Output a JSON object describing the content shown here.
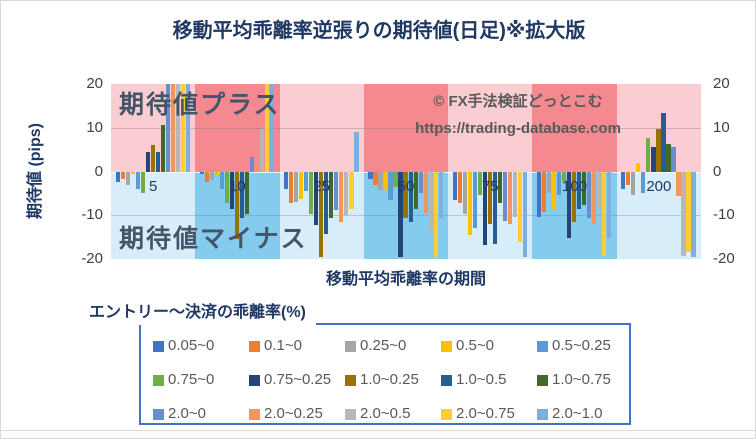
{
  "title": "移動平均乖離率逆張りの期待値(日足)※拡大版",
  "watermark": {
    "line1": "© FX手法検証どっとこむ",
    "line2": "https://trading-database.com"
  },
  "overlays": {
    "positive": "期待値プラス",
    "negative": "期待値マイナス"
  },
  "chart_data": {
    "type": "bar",
    "title": "移動平均乖離率逆張りの期待値(日足)※拡大版",
    "xlabel": "移動平均乖離率の期間",
    "ylabel": "期待値 (pips)",
    "ylim": [
      -20,
      20
    ],
    "yticks": [
      20,
      10,
      0,
      -10,
      -20
    ],
    "grid": "horizontal at ±10",
    "legend_title": "エントリー～決済の乖離率(%)",
    "legend_position": "bottom",
    "categories": [
      "5",
      "10",
      "25",
      "50",
      "75",
      "100",
      "200"
    ],
    "plot_bands": {
      "positive_light": "#F9CDD1",
      "positive_dark": "#F4898F",
      "negative_light": "#D7EDF9",
      "negative_dark": "#85CBEE",
      "pattern": [
        "light",
        "dark",
        "light",
        "dark",
        "light",
        "dark",
        "light"
      ]
    },
    "note": "values clipped at axis limits ±20",
    "series": [
      {
        "name": "0.05~0",
        "color": "#4472C4",
        "values": [
          -2.4,
          -0.5,
          -3.9,
          -1.6,
          -6.5,
          -10.3,
          -3.9
        ]
      },
      {
        "name": "0.1~0",
        "color": "#ED7D31",
        "values": [
          -1.8,
          -2.5,
          -7.3,
          -3.1,
          -7.3,
          -9.2,
          -3.1
        ]
      },
      {
        "name": "0.25~0",
        "color": "#A5A5A5",
        "values": [
          -3.1,
          -1.9,
          -7.0,
          -4.3,
          -9.6,
          -5.0,
          -5.4
        ]
      },
      {
        "name": "0.5~0",
        "color": "#FFC000",
        "values": [
          -0.5,
          -0.8,
          -6.2,
          -3.9,
          -14.6,
          -8.5,
          1.9
        ]
      },
      {
        "name": "0.5~0.25",
        "color": "#5B9BD5",
        "values": [
          -3.9,
          -3.9,
          -4.5,
          -6.5,
          -13.0,
          -5.4,
          -5.0
        ]
      },
      {
        "name": "0.75~0",
        "color": "#70AD47",
        "values": [
          -5.0,
          -7.3,
          -9.6,
          -3.5,
          -5.4,
          -2.3,
          7.7
        ]
      },
      {
        "name": "0.75~0.25",
        "color": "#264478",
        "values": [
          4.5,
          -8.5,
          -12.2,
          -19.5,
          -16.9,
          -15.3,
          5.5
        ]
      },
      {
        "name": "1.0~0.25",
        "color": "#997300",
        "values": [
          6.0,
          -15.5,
          -19.5,
          -10.7,
          -11.9,
          -11.5,
          9.8
        ]
      },
      {
        "name": "1.0~0.5",
        "color": "#255E91",
        "values": [
          4.5,
          -10.7,
          -14.2,
          -11.5,
          -16.5,
          -8.5,
          13.3
        ]
      },
      {
        "name": "1.0~0.75",
        "color": "#43682B",
        "values": [
          10.7,
          -9.6,
          -10.7,
          -8.5,
          -7.3,
          -7.7,
          6.4
        ]
      },
      {
        "name": "2.0~0",
        "color": "#698ED0",
        "values": [
          20.0,
          3.4,
          -8.9,
          -5.0,
          -11.4,
          -10.7,
          5.5
        ]
      },
      {
        "name": "2.0~0.25",
        "color": "#F1975A",
        "values": [
          20.0,
          1.1,
          -11.5,
          -9.5,
          -12.0,
          -11.9,
          -5.7
        ]
      },
      {
        "name": "2.0~0.5",
        "color": "#B7B7B7",
        "values": [
          20.0,
          9.7,
          -10.0,
          -13.7,
          -10.5,
          -8.5,
          -19.3
        ]
      },
      {
        "name": "2.0~0.75",
        "color": "#FFCD33",
        "values": [
          20.0,
          20.0,
          -8.5,
          -19.7,
          -16.0,
          -19.3,
          -18.3
        ]
      },
      {
        "name": "2.0~1.0",
        "color": "#7CAFDD",
        "values": [
          20.0,
          20.0,
          9.1,
          -10.7,
          -19.5,
          -15.3,
          -19.5
        ]
      }
    ]
  }
}
